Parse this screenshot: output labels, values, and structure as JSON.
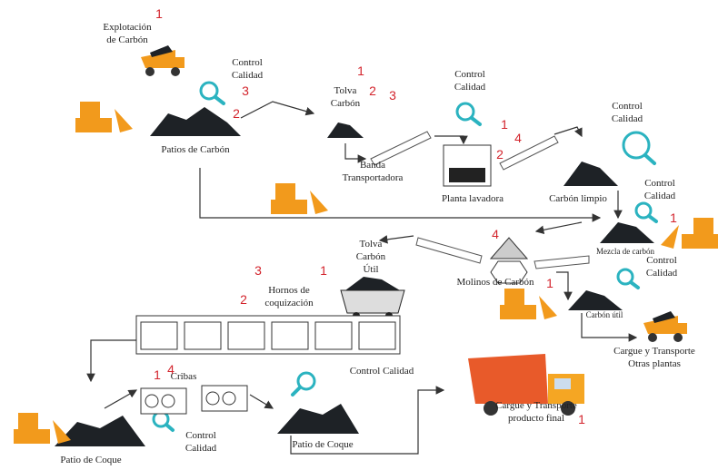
{
  "labels": [
    [
      "Explotación",
      "de Carbón"
    ],
    [
      "Control",
      "Calidad"
    ],
    [
      "Patios de Carbón"
    ],
    [
      "Tolva",
      "Carbón"
    ],
    [
      "Control",
      "Calidad"
    ],
    [
      "Banda",
      "Transportadora"
    ],
    [
      "Planta lavadora"
    ],
    [
      "Control",
      "Calidad"
    ],
    [
      "Carbón limpio"
    ],
    [
      "Control",
      "Calidad"
    ],
    [
      "Mezcla de carbón"
    ],
    [
      "Tolva",
      "Carbón",
      "Útil"
    ],
    [
      "Molinos de Carbón"
    ],
    [
      "Hornos de",
      "coquización"
    ],
    [
      "Control",
      "Calidad"
    ],
    [
      "Carbón útil"
    ],
    [
      "Cargue y Transporte",
      "Otras plantas"
    ],
    [
      "Cribas"
    ],
    [
      "Control Calidad"
    ],
    [
      "Control",
      "Calidad"
    ],
    [
      "Patio de Coque"
    ],
    [
      "Cargue y Transporte",
      "producto final"
    ],
    [
      "Patio de Coque"
    ]
  ],
  "markers": [
    1,
    3,
    2,
    1,
    2,
    3,
    1,
    4,
    2,
    1,
    4,
    1,
    3,
    1,
    2,
    1,
    4,
    1
  ]
}
